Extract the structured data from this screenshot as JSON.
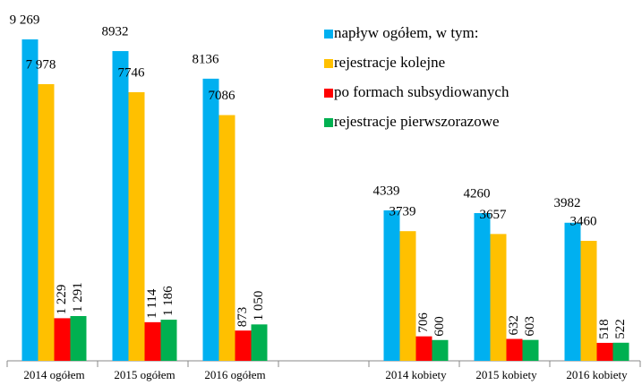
{
  "chart_data": {
    "type": "bar",
    "categories": [
      "2014 ogółem",
      "2015 ogółem",
      "2016 ogółem",
      null,
      "2014 kobiety",
      "2015 kobiety",
      "2016 kobiety"
    ],
    "series": [
      {
        "name": "napływ ogółem, w tym:",
        "color": "#00b0f0",
        "values": [
          9269,
          8932,
          8136,
          null,
          4339,
          4260,
          3982
        ],
        "value_labels": [
          "9 269",
          "8932",
          "8136",
          null,
          "4339",
          "4260",
          "3982"
        ]
      },
      {
        "name": "rejestracje kolejne",
        "color": "#ffc000",
        "values": [
          7978,
          7746,
          7086,
          null,
          3739,
          3657,
          3460
        ],
        "value_labels": [
          "7 978",
          "7746",
          "7086",
          null,
          "3739",
          "3657",
          "3460"
        ]
      },
      {
        "name": "po formach subsydiowanych",
        "color": "#ff0000",
        "values": [
          1229,
          1114,
          873,
          null,
          706,
          632,
          518
        ],
        "value_labels": [
          "1 229",
          "1 114",
          "873",
          null,
          "706",
          "632",
          "518"
        ]
      },
      {
        "name": "rejestracje pierwszorazowe",
        "color": "#00b050",
        "values": [
          1291,
          1186,
          1050,
          null,
          600,
          603,
          522
        ],
        "value_labels": [
          "1 291",
          "1 186",
          "1 050",
          null,
          "600",
          "603",
          "522"
        ]
      }
    ],
    "legend": "top-right"
  }
}
